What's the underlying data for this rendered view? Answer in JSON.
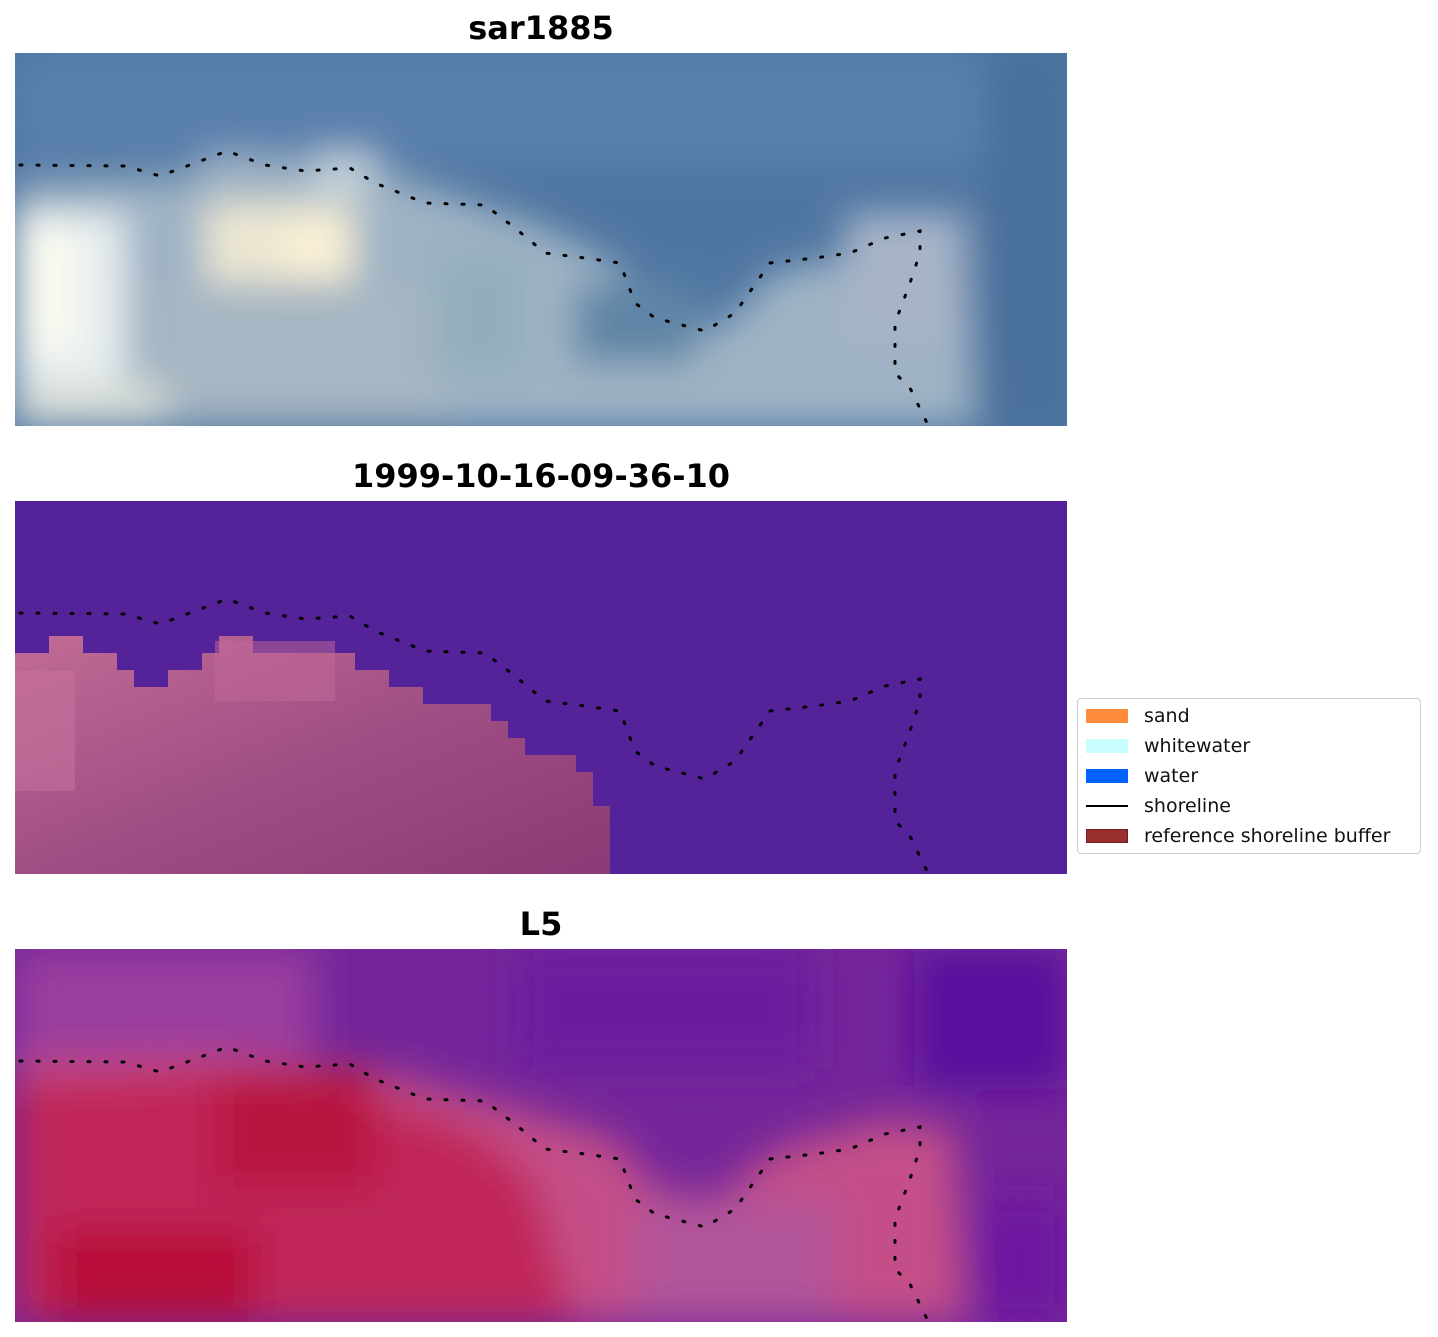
{
  "panels": [
    {
      "title": "sar1885",
      "kind": "rgb-image"
    },
    {
      "title": "1999-10-16-09-36-10",
      "kind": "classified-image"
    },
    {
      "title": "L5",
      "kind": "index-image"
    }
  ],
  "legend": {
    "placement": "right",
    "items": [
      {
        "label": "sand",
        "color": "#ff8c3a",
        "type": "patch"
      },
      {
        "label": "whitewater",
        "color": "#c8fdfd",
        "type": "patch"
      },
      {
        "label": "water",
        "color": "#0062ff",
        "type": "patch"
      },
      {
        "label": "shoreline",
        "color": "#000000",
        "type": "line"
      },
      {
        "label": "reference shoreline buffer",
        "color": "#9a2f2f",
        "edge": "#7a1a1a",
        "type": "patch"
      }
    ]
  },
  "colors": {
    "water_class": "#552399",
    "land_class": "#b45a86",
    "sea_rgb": "#4f76a2",
    "index_high": "#c01a4a",
    "index_low": "#5a0a9e"
  }
}
